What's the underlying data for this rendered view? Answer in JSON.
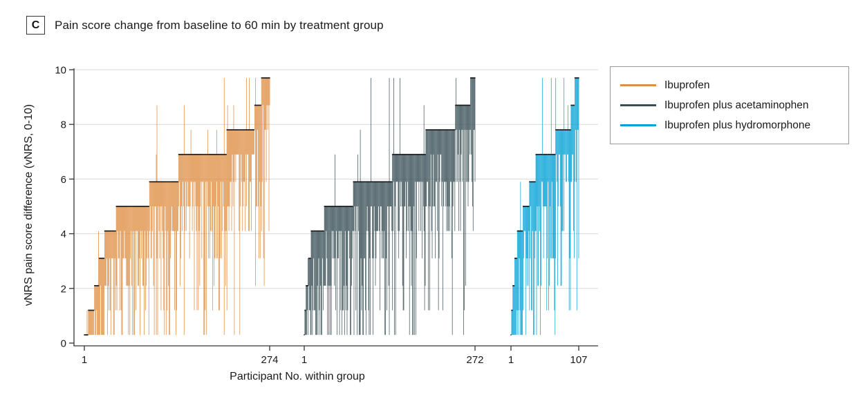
{
  "panel": {
    "label": "C",
    "title": "Pain score change from baseline to 60 min by treatment group"
  },
  "chart_data": {
    "type": "bar",
    "subtype": "sorted individual-participant vertical range lines (caterpillar plot); dark tick caps the sorted 60-min score change of each participant",
    "title": "Pain score change from baseline to 60 min by treatment group",
    "xlabel": "Participant No. within group",
    "ylabel": "vNRS pain score difference (vNRS, 0-10)",
    "ylim": [
      0,
      10
    ],
    "yticks": [
      0,
      2,
      4,
      6,
      8,
      10
    ],
    "grid": "horizontal light gray gridlines at 2,4,6,8,10",
    "legend_position": "outside top-right, boxed",
    "cap_color": "#1b1b1b",
    "axis_color": "#333333",
    "grid_color": "#d8d8d8",
    "value_levels": [
      0.3,
      1.2,
      2.1,
      3.1,
      4.1,
      5.0,
      5.9,
      6.9,
      7.8,
      8.7,
      9.7
    ],
    "groups": [
      {
        "name": "Ibuprofen",
        "color": "#DF8F44",
        "n": 274,
        "x_first_label": "1",
        "x_last_label": "274",
        "sorted_level_counts": [
          6,
          9,
          7,
          8,
          17,
          49,
          43,
          71,
          41,
          10,
          13
        ]
      },
      {
        "name": "Ibuprofen plus acetaminophen",
        "color": "#374E55",
        "n": 272,
        "x_first_label": "1",
        "x_last_label": "272",
        "sorted_level_counts": [
          1,
          2,
          4,
          4,
          21,
          46,
          62,
          53,
          47,
          24,
          8
        ]
      },
      {
        "name": "Ibuprofen plus hydromorphone",
        "color": "#00A1D5",
        "n": 107,
        "x_first_label": "1",
        "x_last_label": "107",
        "sorted_level_counts": [
          1,
          2,
          3,
          4,
          9,
          10,
          10,
          31,
          24,
          6,
          7
        ]
      }
    ],
    "render_hints": {
      "hang_cumulative": [
        [
          1,
          0.26
        ],
        [
          2,
          0.48
        ],
        [
          3,
          0.64
        ],
        [
          4,
          0.76
        ],
        [
          5,
          0.85
        ],
        [
          6,
          0.91
        ],
        [
          7,
          0.95
        ],
        [
          8,
          0.975
        ],
        [
          9,
          0.99
        ],
        [
          10,
          1.0
        ]
      ],
      "spike_probability": 0.055,
      "spike_cumulative": [
        [
          1,
          0.45
        ],
        [
          2,
          0.75
        ],
        [
          3,
          0.9
        ],
        [
          4,
          1.0
        ]
      ],
      "seed": 1234
    }
  }
}
